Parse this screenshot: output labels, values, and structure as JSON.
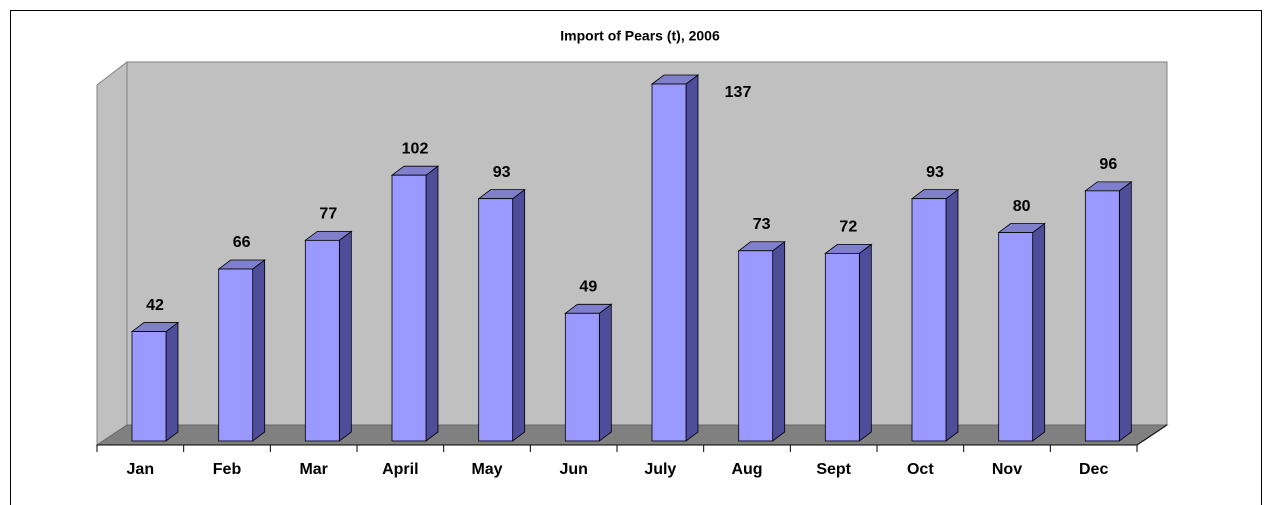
{
  "chart_data": {
    "type": "bar",
    "title": "Import of Pears (t), 2006",
    "categories": [
      "Jan",
      "Feb",
      "Mar",
      "April",
      "May",
      "Jun",
      "July",
      "Aug",
      "Sept",
      "Oct",
      "Nov",
      "Dec"
    ],
    "values": [
      42,
      66,
      77,
      102,
      93,
      49,
      137,
      73,
      72,
      93,
      80,
      96
    ],
    "color": "#9999ff"
  }
}
